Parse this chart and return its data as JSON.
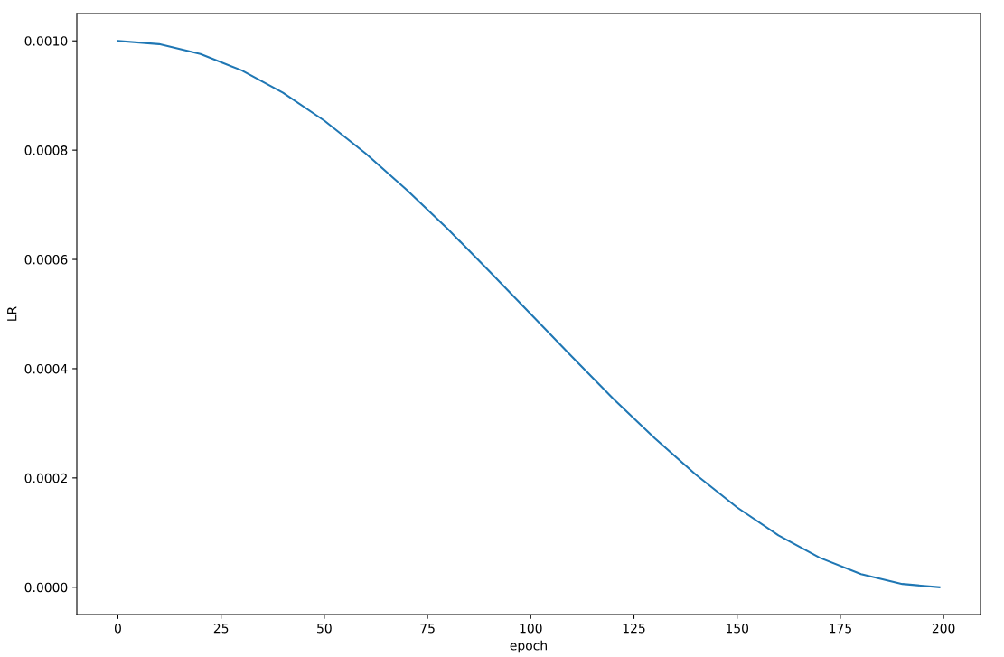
{
  "chart_data": {
    "type": "line",
    "xlabel": "epoch",
    "ylabel": "LR",
    "x": [
      0,
      10,
      20,
      30,
      40,
      50,
      60,
      70,
      80,
      90,
      100,
      110,
      120,
      130,
      140,
      150,
      160,
      170,
      180,
      190,
      199
    ],
    "series": [
      {
        "color": "#1f77b4",
        "values": [
          0.001,
          0.000994,
          0.000976,
          0.000946,
          0.000905,
          0.000854,
          0.000794,
          0.000727,
          0.000655,
          0.000578,
          0.0005,
          0.000422,
          0.000345,
          0.000273,
          0.000206,
          0.000146,
          9.5e-05,
          5.4e-05,
          2.4e-05,
          6e-06,
          0.0
        ]
      }
    ],
    "xlim": [
      -9.95,
      208.95
    ],
    "xticks": [
      0,
      25,
      50,
      75,
      100,
      125,
      150,
      175,
      200
    ],
    "ylim": [
      -5e-05,
      0.00105
    ],
    "yticks": [
      {
        "value": 0.0,
        "label": "0.0000"
      },
      {
        "value": 0.0002,
        "label": "0.0002"
      },
      {
        "value": 0.0004,
        "label": "0.0004"
      },
      {
        "value": 0.0006,
        "label": "0.0006"
      },
      {
        "value": 0.0008,
        "label": "0.0008"
      },
      {
        "value": 0.001,
        "label": "0.0010"
      }
    ],
    "grid": false,
    "legend": false,
    "marker": "none",
    "line_style": "solid"
  }
}
